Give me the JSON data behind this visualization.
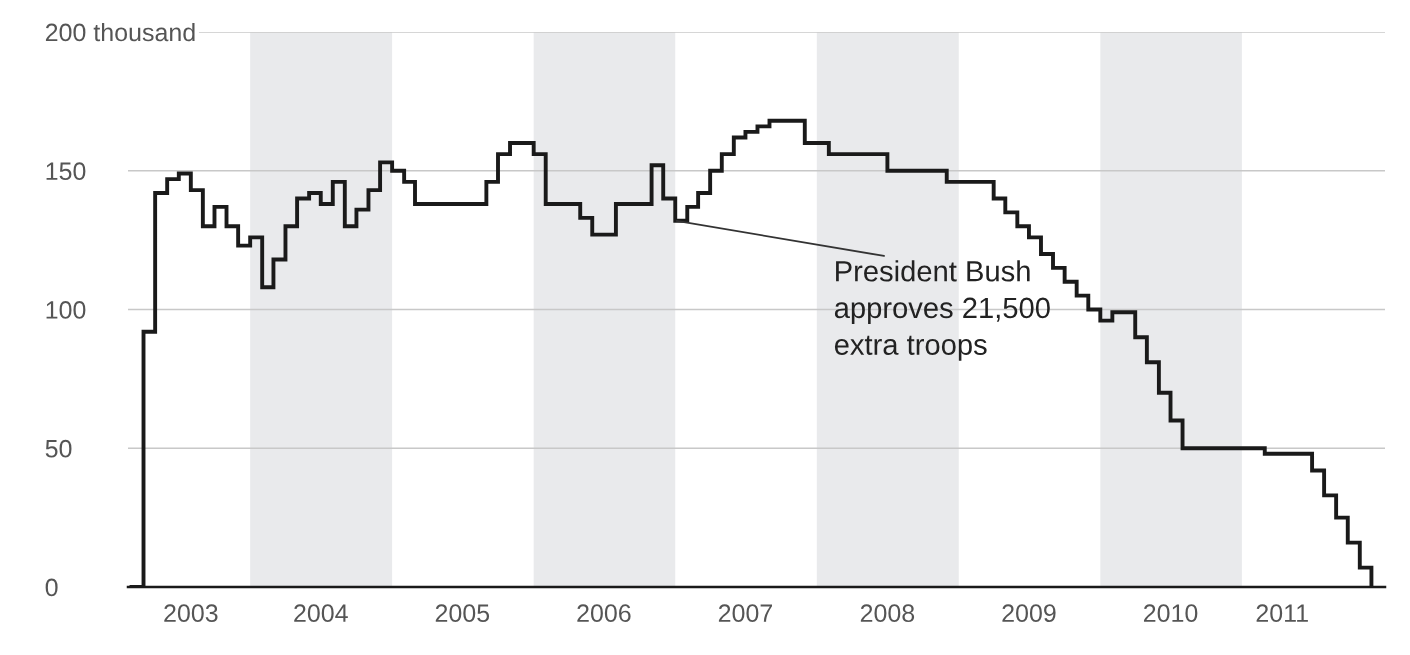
{
  "chart_data": {
    "type": "step",
    "x": [
      "2003-03",
      "2003-04",
      "2003-05",
      "2003-06",
      "2003-07",
      "2003-08",
      "2003-09",
      "2003-10",
      "2003-11",
      "2003-12",
      "2004-01",
      "2004-02",
      "2004-03",
      "2004-04",
      "2004-05",
      "2004-06",
      "2004-07",
      "2004-08",
      "2004-09",
      "2004-10",
      "2004-11",
      "2004-12",
      "2005-01",
      "2005-02",
      "2005-03",
      "2005-09",
      "2005-10",
      "2005-11",
      "2006-01",
      "2006-02",
      "2006-05",
      "2006-06",
      "2006-08",
      "2006-11",
      "2006-12",
      "2007-01",
      "2007-02",
      "2007-03",
      "2007-04",
      "2007-05",
      "2007-06",
      "2007-07",
      "2007-08",
      "2007-09",
      "2007-12",
      "2008-02",
      "2008-07",
      "2008-12",
      "2009-04",
      "2009-05",
      "2009-06",
      "2009-07",
      "2009-08",
      "2009-09",
      "2009-10",
      "2009-11",
      "2009-12",
      "2010-01",
      "2010-02",
      "2010-04",
      "2010-05",
      "2010-06",
      "2010-07",
      "2010-08",
      "2011-03",
      "2011-07",
      "2011-08",
      "2011-09",
      "2011-10",
      "2011-11",
      "2011-12"
    ],
    "series": [
      {
        "color": "#1a1a1a",
        "values": [
          0,
          92,
          142,
          147,
          149,
          143,
          130,
          137,
          130,
          123,
          126,
          108,
          118,
          130,
          140,
          142,
          138,
          146,
          130,
          136,
          143,
          153,
          150,
          146,
          138,
          146,
          156,
          160,
          156,
          138,
          133,
          127,
          138,
          152,
          140,
          132,
          137,
          142,
          150,
          156,
          162,
          164,
          166,
          168,
          160,
          156,
          150,
          146,
          140,
          135,
          130,
          126,
          120,
          115,
          110,
          105,
          100,
          96,
          99,
          90,
          81,
          70,
          60,
          50,
          48,
          42,
          33,
          25,
          16,
          7,
          0
        ]
      }
    ],
    "xlim": [
      "2003-02-20",
      "2012-01-05"
    ],
    "xticks": [
      {
        "value": "2003-08-01",
        "label": "2003"
      },
      {
        "value": "2004-07-01",
        "label": "2004"
      },
      {
        "value": "2005-07-01",
        "label": "2005"
      },
      {
        "value": "2006-07-01",
        "label": "2006"
      },
      {
        "value": "2007-07-01",
        "label": "2007"
      },
      {
        "value": "2008-07-01",
        "label": "2008"
      },
      {
        "value": "2009-07-01",
        "label": "2009"
      },
      {
        "value": "2010-07-01",
        "label": "2010"
      },
      {
        "value": "2011-04-15",
        "label": "2011"
      }
    ],
    "ylim": [
      0,
      200
    ],
    "yticks": [
      0,
      50,
      100,
      150,
      {
        "value": 200,
        "label": "200 thousand"
      }
    ],
    "grid": "y",
    "bands": [
      {
        "axis": "x",
        "from": "2004-01",
        "to": "2005-01",
        "color": "#e9eaec"
      },
      {
        "axis": "x",
        "from": "2006-01",
        "to": "2007-01",
        "color": "#e9eaec"
      },
      {
        "axis": "x",
        "from": "2008-01",
        "to": "2009-01",
        "color": "#e9eaec"
      },
      {
        "axis": "x",
        "from": "2010-01",
        "to": "2011-01",
        "color": "#e9eaec"
      }
    ],
    "annotations": [
      {
        "text": "President Bush\napproves 21,500\nextra troops",
        "x": "2007-01",
        "y": 132
      }
    ]
  }
}
